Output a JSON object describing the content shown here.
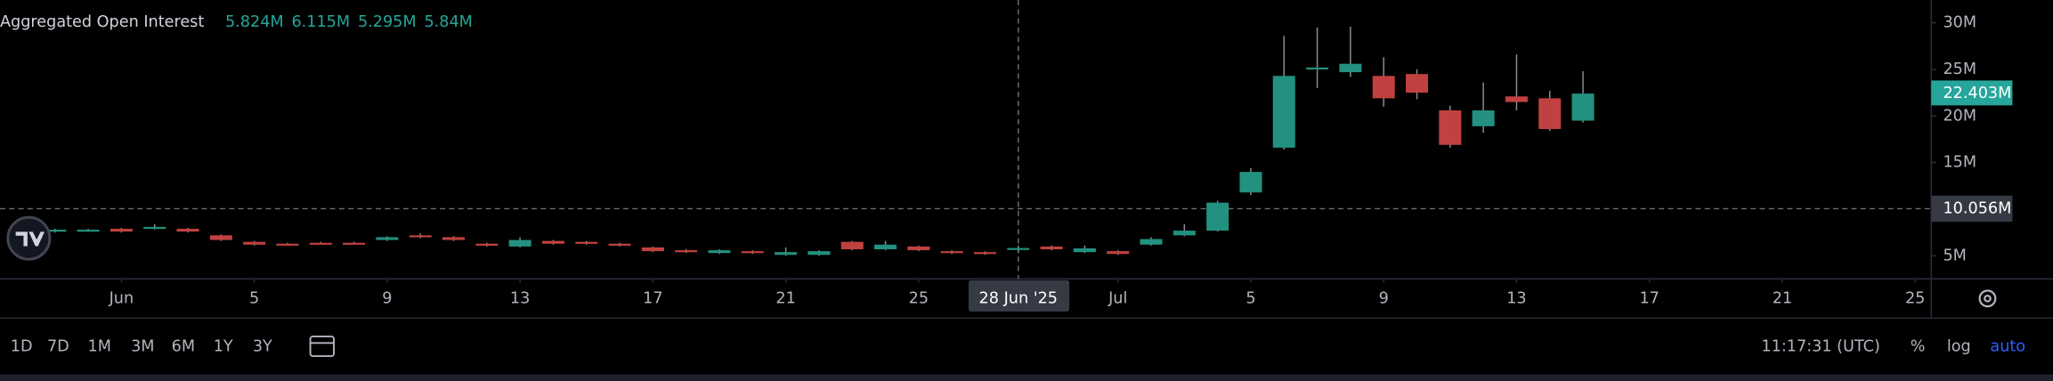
{
  "chart_data": {
    "type": "candlestick",
    "title": "Aggregated Open Interest",
    "legend_values": [
      "5.824M",
      "6.115M",
      "5.295M",
      "5.84M"
    ],
    "x": [
      "2025-05-30",
      "2025-05-31",
      "2025-06-01",
      "2025-06-02",
      "2025-06-03",
      "2025-06-04",
      "2025-06-05",
      "2025-06-06",
      "2025-06-07",
      "2025-06-08",
      "2025-06-09",
      "2025-06-10",
      "2025-06-11",
      "2025-06-12",
      "2025-06-13",
      "2025-06-14",
      "2025-06-15",
      "2025-06-16",
      "2025-06-17",
      "2025-06-18",
      "2025-06-19",
      "2025-06-20",
      "2025-06-21",
      "2025-06-22",
      "2025-06-23",
      "2025-06-24",
      "2025-06-25",
      "2025-06-26",
      "2025-06-27",
      "2025-06-28",
      "2025-06-29",
      "2025-06-30",
      "2025-07-01",
      "2025-07-02",
      "2025-07-03",
      "2025-07-04",
      "2025-07-05",
      "2025-07-06",
      "2025-07-07",
      "2025-07-08",
      "2025-07-09",
      "2025-07-10",
      "2025-07-11",
      "2025-07-12",
      "2025-07-13",
      "2025-07-14",
      "2025-07-15"
    ],
    "open": [
      7600000,
      7700000,
      7900000,
      7900000,
      7900000,
      7200000,
      6500000,
      6300000,
      6400000,
      6400000,
      6700000,
      7200000,
      7000000,
      6300000,
      6000000,
      6600000,
      6500000,
      6300000,
      5900000,
      5600000,
      5300000,
      5500000,
      5100000,
      5100000,
      6500000,
      5700000,
      6000000,
      5500000,
      5400000,
      5824000,
      6000000,
      5400000,
      5500000,
      6200000,
      7200000,
      7700000,
      11800000,
      16600000,
      25000000,
      24700000,
      24300000,
      24500000,
      20600000,
      18900000,
      22100000,
      21900000,
      19500000
    ],
    "high": [
      7900000,
      7900000,
      8000000,
      8400000,
      8000000,
      7300000,
      6600000,
      6400000,
      6500000,
      6500000,
      7100000,
      7400000,
      7100000,
      6400000,
      7000000,
      6700000,
      6600000,
      6400000,
      6000000,
      5700000,
      5700000,
      5600000,
      5900000,
      5600000,
      6600000,
      6600000,
      6100000,
      5600000,
      5500000,
      6115000,
      6100000,
      6100000,
      5600000,
      7000000,
      8400000,
      10900000,
      14400000,
      28600000,
      29500000,
      29600000,
      26300000,
      25000000,
      21100000,
      23600000,
      26600000,
      22700000,
      24800000
    ],
    "low": [
      7500000,
      7600000,
      7500000,
      7800000,
      7500000,
      6600000,
      6100000,
      6100000,
      6200000,
      6200000,
      6600000,
      6900000,
      6600000,
      6000000,
      5900000,
      6200000,
      6200000,
      6000000,
      5400000,
      5300000,
      5200000,
      5200000,
      5000000,
      5000000,
      5600000,
      5600000,
      5500000,
      5200000,
      5100000,
      5295000,
      5600000,
      5300000,
      5100000,
      6100000,
      7100000,
      7600000,
      11500000,
      16400000,
      23000000,
      24200000,
      21000000,
      21800000,
      16600000,
      18200000,
      20600000,
      18400000,
      19300000
    ],
    "close": [
      7800000,
      7800000,
      7600000,
      8100000,
      7600000,
      6700000,
      6200000,
      6200000,
      6300000,
      6300000,
      7000000,
      7000000,
      6700000,
      6100000,
      6700000,
      6300000,
      6300000,
      6100000,
      5500000,
      5400000,
      5600000,
      5300000,
      5400000,
      5500000,
      5700000,
      6200000,
      5600000,
      5300000,
      5200000,
      5840000,
      5700000,
      5800000,
      5200000,
      6800000,
      7700000,
      10700000,
      14000000,
      24300000,
      25200000,
      25600000,
      21900000,
      22500000,
      16900000,
      20600000,
      21500000,
      18600000,
      22403000
    ],
    "up_color": "#22917f",
    "down_color": "#c0413f",
    "ylim": [
      2528000,
      32440000
    ],
    "yticks": [
      {
        "value": 5000000,
        "label": "5M"
      },
      {
        "value": 15000000,
        "label": "15M"
      },
      {
        "value": 20000000,
        "label": "20M"
      },
      {
        "value": 25000000,
        "label": "25M"
      },
      {
        "value": 30000000,
        "label": "30M"
      }
    ],
    "xticks": [
      {
        "value": "2025-06-01",
        "label": "Jun"
      },
      {
        "value": "2025-06-05",
        "label": "5"
      },
      {
        "value": "2025-06-09",
        "label": "9"
      },
      {
        "value": "2025-06-13",
        "label": "13"
      },
      {
        "value": "2025-06-17",
        "label": "17"
      },
      {
        "value": "2025-06-21",
        "label": "21"
      },
      {
        "value": "2025-06-25",
        "label": "25"
      },
      {
        "value": "2025-07-01",
        "label": "Jul"
      },
      {
        "value": "2025-07-05",
        "label": "5"
      },
      {
        "value": "2025-07-09",
        "label": "9"
      },
      {
        "value": "2025-07-13",
        "label": "13"
      },
      {
        "value": "2025-07-17",
        "label": "17"
      },
      {
        "value": "2025-07-21",
        "label": "21"
      },
      {
        "value": "2025-07-25",
        "label": "25"
      }
    ],
    "crosshair": {
      "x": {
        "value": "2025-06-28",
        "label": "28 Jun '25"
      },
      "y": {
        "value": 10056000,
        "label": "10.056M"
      }
    },
    "last_price": {
      "value": 22403000,
      "label": "22.403M"
    }
  },
  "toolbar": {
    "ranges": [
      "1D",
      "7D",
      "1M",
      "3M",
      "6M",
      "1Y",
      "3Y"
    ],
    "time": "11:17:31 (UTC)",
    "options": [
      "%",
      "log",
      "auto"
    ]
  }
}
